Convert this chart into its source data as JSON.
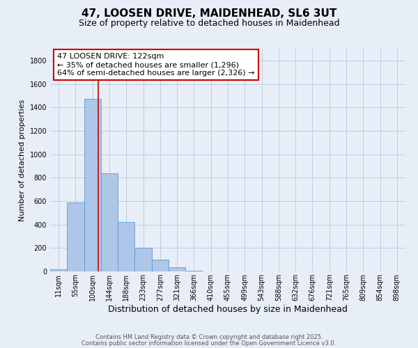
{
  "title": "47, LOOSEN DRIVE, MAIDENHEAD, SL6 3UT",
  "subtitle": "Size of property relative to detached houses in Maidenhead",
  "xlabel": "Distribution of detached houses by size in Maidenhead",
  "ylabel": "Number of detached properties",
  "bin_labels": [
    "11sqm",
    "55sqm",
    "100sqm",
    "144sqm",
    "188sqm",
    "233sqm",
    "277sqm",
    "321sqm",
    "366sqm",
    "410sqm",
    "455sqm",
    "499sqm",
    "543sqm",
    "588sqm",
    "632sqm",
    "676sqm",
    "721sqm",
    "765sqm",
    "809sqm",
    "854sqm",
    "898sqm"
  ],
  "bar_values": [
    15,
    585,
    1470,
    835,
    420,
    200,
    100,
    35,
    5,
    2,
    1,
    0,
    0,
    0,
    0,
    0,
    0,
    0,
    0,
    0,
    0
  ],
  "bar_color": "#aec6e8",
  "bar_edge_color": "#5b9bd5",
  "background_color": "#e8eef8",
  "grid_color": "#c0ccdb",
  "annotation_box_text": "47 LOOSEN DRIVE: 122sqm\n← 35% of detached houses are smaller (1,296)\n64% of semi-detached houses are larger (2,326) →",
  "annotation_box_color": "#ffffff",
  "annotation_box_edge_color": "#cc0000",
  "red_line_x": 2.35,
  "ylim": [
    0,
    1900
  ],
  "yticks": [
    0,
    200,
    400,
    600,
    800,
    1000,
    1200,
    1400,
    1600,
    1800
  ],
  "footer_line1": "Contains HM Land Registry data © Crown copyright and database right 2025.",
  "footer_line2": "Contains public sector information licensed under the Open Government Licence v3.0.",
  "title_fontsize": 11,
  "subtitle_fontsize": 9,
  "xlabel_fontsize": 9,
  "ylabel_fontsize": 8,
  "tick_fontsize": 7,
  "annotation_fontsize": 8,
  "footer_fontsize": 6
}
